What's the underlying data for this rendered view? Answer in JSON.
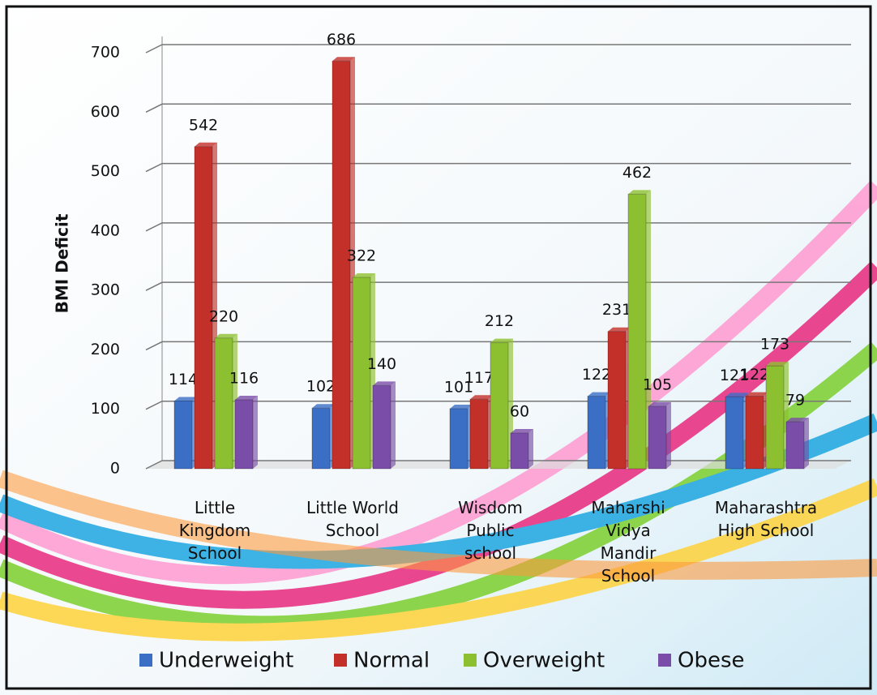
{
  "chart_data": {
    "type": "bar",
    "y_label": "BMI Deficit",
    "categories": [
      "Little Kingdom School",
      "Little World School",
      "Wisdom Public school",
      "Maharshi Vidya Mandir School",
      "Maharashtra High School"
    ],
    "series": [
      {
        "name": "Underweight",
        "color": "#3b6fc6",
        "values": [
          114,
          102,
          101,
          122,
          121
        ]
      },
      {
        "name": "Normal",
        "color": "#c3302a",
        "values": [
          542,
          686,
          117,
          231,
          122
        ]
      },
      {
        "name": "Overweight",
        "color": "#8dc030",
        "values": [
          220,
          322,
          212,
          462,
          173
        ]
      },
      {
        "name": "Obese",
        "color": "#7a4ea8",
        "values": [
          116,
          140,
          60,
          105,
          79
        ]
      }
    ],
    "ylim": [
      0,
      700
    ],
    "yticks": [
      0,
      100,
      200,
      300,
      400,
      500,
      600,
      700
    ],
    "grid": true,
    "legend": "bottom"
  }
}
